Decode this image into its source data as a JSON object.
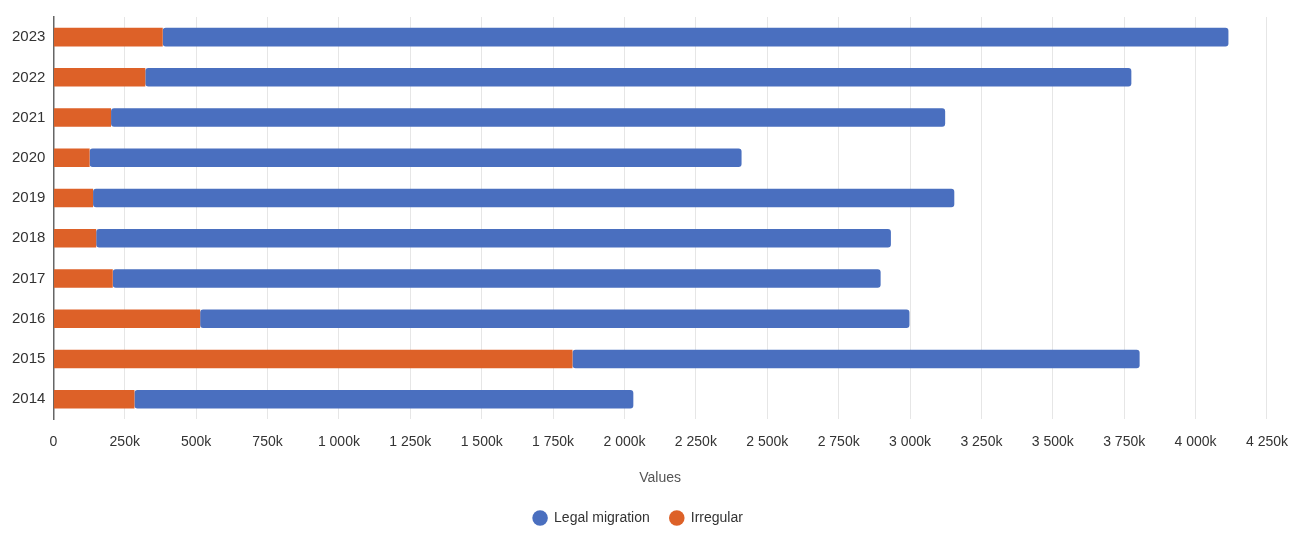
{
  "chart_data": {
    "type": "bar",
    "orientation": "horizontal",
    "stacked": true,
    "categories": [
      "2023",
      "2022",
      "2021",
      "2020",
      "2019",
      "2018",
      "2017",
      "2016",
      "2015",
      "2014"
    ],
    "series": [
      {
        "name": "Irregular",
        "color": "#dd6128",
        "values": [
          383000,
          322000,
          202000,
          127000,
          139000,
          150000,
          208000,
          514000,
          1818000,
          284000
        ]
      },
      {
        "name": "Legal migration",
        "color": "#4a6fbf",
        "values": [
          3732000,
          3453000,
          2921000,
          2283000,
          3016000,
          2783000,
          2689000,
          2484000,
          1986000,
          1747000
        ]
      }
    ],
    "xlabel": "Values",
    "xlim": [
      0,
      4250000
    ],
    "xticks": [
      0,
      {
        "value": 250000,
        "label": "250k"
      },
      {
        "value": 500000,
        "label": "500k"
      },
      {
        "value": 750000,
        "label": "750k"
      },
      {
        "value": 1000000,
        "label": "1 000k"
      },
      {
        "value": 1250000,
        "label": "1 250k"
      },
      {
        "value": 1500000,
        "label": "1 500k"
      },
      {
        "value": 1750000,
        "label": "1 750k"
      },
      {
        "value": 2000000,
        "label": "2 000k"
      },
      {
        "value": 2250000,
        "label": "2 250k"
      },
      {
        "value": 2500000,
        "label": "2 500k"
      },
      {
        "value": 2750000,
        "label": "2 750k"
      },
      {
        "value": 3000000,
        "label": "3 000k"
      },
      {
        "value": 3250000,
        "label": "3 250k"
      },
      {
        "value": 3500000,
        "label": "3 500k"
      },
      {
        "value": 3750000,
        "label": "3 750k"
      },
      {
        "value": 4000000,
        "label": "4 000k"
      },
      {
        "value": 4250000,
        "label": "4 250k"
      }
    ],
    "grid": "x",
    "legend": "bottom"
  }
}
